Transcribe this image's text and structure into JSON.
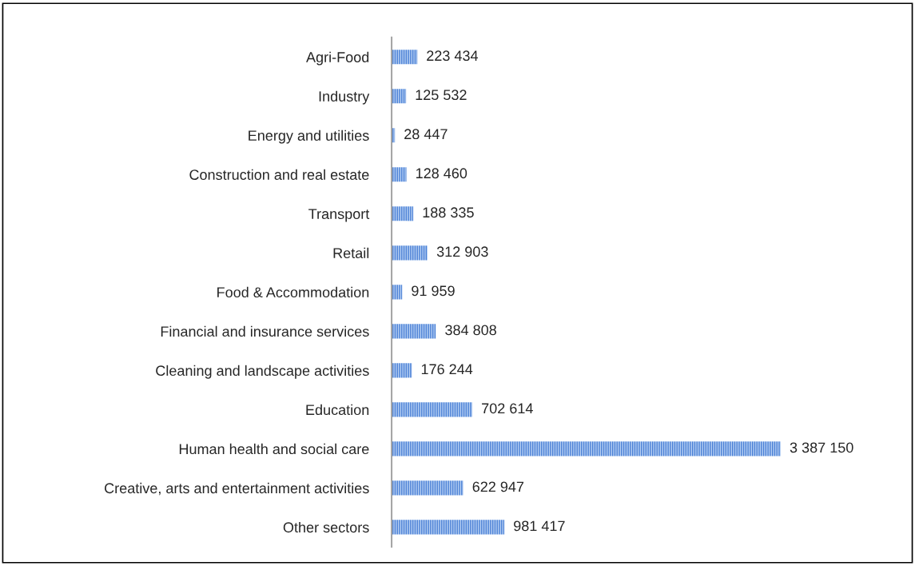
{
  "chart_data": {
    "type": "bar",
    "orientation": "horizontal",
    "categories": [
      "Agri-Food",
      "Industry",
      "Energy and utilities",
      "Construction and real estate",
      "Transport",
      "Retail",
      "Food & Accommodation",
      "Financial and insurance services",
      "Cleaning and landscape activities",
      "Education",
      "Human health and social care",
      "Creative, arts and entertainment activities",
      "Other sectors"
    ],
    "values": [
      223434,
      125532,
      28447,
      128460,
      188335,
      312903,
      91959,
      384808,
      176244,
      702614,
      3387150,
      622947,
      981417
    ],
    "value_labels": [
      "223 434",
      "125 532",
      "28 447",
      "128 460",
      "188 335",
      "312 903",
      "91 959",
      "384 808",
      "176 244",
      "702 614",
      "3 387 150",
      "622 947",
      "981 417"
    ],
    "color": "#4a80d6",
    "grid": false,
    "legend": false
  }
}
